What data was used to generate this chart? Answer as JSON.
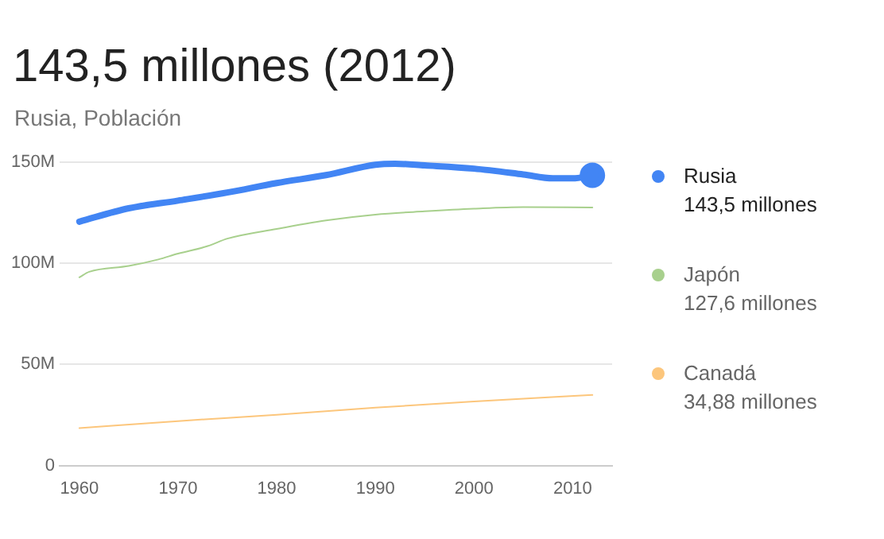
{
  "chart_data": {
    "type": "line",
    "title": "143,5 millones (2012)",
    "subtitle": "Rusia, Población",
    "x": [
      1960,
      1965,
      1970,
      1975,
      1980,
      1985,
      1990,
      1992,
      1995,
      2000,
      2005,
      2008,
      2010,
      2012
    ],
    "series": [
      {
        "name": "Rusia",
        "color": "#4285f4",
        "values": [
          120.6,
          127.2,
          131,
          135,
          139.7,
          143.6,
          148.7,
          149.2,
          148.4,
          146.8,
          143.9,
          142,
          142,
          143.5
        ]
      },
      {
        "name": "Japón",
        "color": "#a8d08d",
        "x": [
          1960,
          1961,
          1965,
          1968,
          1970,
          1973,
          1975,
          1980,
          1985,
          1990,
          1995,
          2000,
          2005,
          2012
        ],
        "values": [
          93.1,
          95.8,
          98.7,
          101.9,
          104.8,
          108.5,
          112.2,
          117,
          121.2,
          124.1,
          125.7,
          127,
          127.8,
          127.6
        ]
      },
      {
        "name": "Canadá",
        "color": "#fcc67c",
        "x": [
          1960,
          1970,
          1980,
          1990,
          2000,
          2012
        ],
        "values": [
          18.5,
          22,
          25.1,
          28.6,
          31.7,
          34.88
        ]
      }
    ],
    "annotations": [
      "143,5 millones",
      "127,6 millones",
      "34,88 millones"
    ],
    "xlim": [
      1958,
      2014
    ],
    "xticks": [
      1960,
      1970,
      1980,
      1990,
      2000,
      2010
    ],
    "ylim": [
      0,
      150
    ],
    "yticks": [
      0,
      {
        "value": 50,
        "label": "50M"
      },
      {
        "value": 100,
        "label": "100M"
      },
      {
        "value": 150,
        "label": "150M"
      }
    ],
    "grid": "y",
    "legend": "right"
  }
}
